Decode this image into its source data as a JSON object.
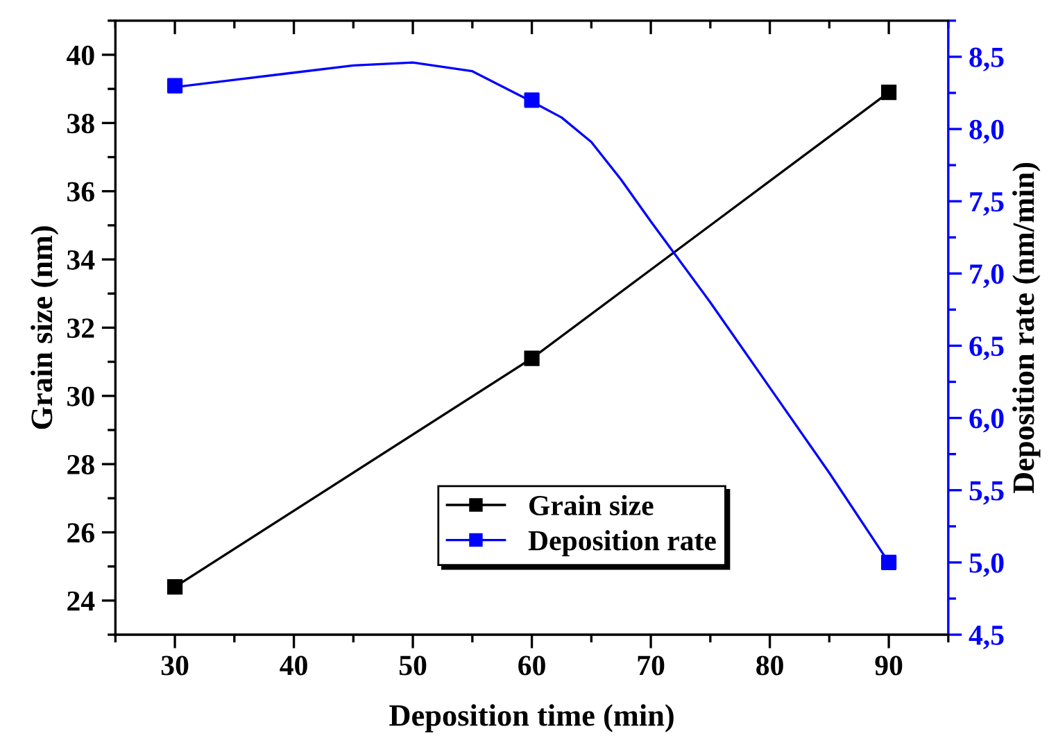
{
  "chart_data": {
    "type": "line",
    "xlabel": "Deposition time (min)",
    "ylabel": "Grain size (nm)",
    "y2label": "Deposition rate (nm/min)",
    "x": [
      30,
      60,
      90
    ],
    "series": [
      {
        "name": "Grain size",
        "color": "#000000",
        "values": [
          24.4,
          31.1,
          38.9
        ]
      },
      {
        "name": "Deposition rate",
        "color": "#0000ff",
        "values": [
          8.3,
          8.2,
          5.0
        ],
        "axis": "y2",
        "type": "scatter"
      },
      {
        "color": "#0000ff",
        "axis": "y2",
        "marker": "none",
        "x": [
          30,
          35,
          40,
          45,
          50,
          55,
          60,
          62.5,
          65,
          67.5,
          70,
          75,
          80,
          85,
          90
        ],
        "values": [
          8.29,
          8.34,
          8.39,
          8.44,
          8.46,
          8.4,
          8.19,
          8.08,
          7.91,
          7.65,
          7.36,
          6.8,
          6.21,
          5.62,
          5.0
        ]
      }
    ],
    "xlim": [
      25,
      95
    ],
    "xticks": [
      30,
      40,
      50,
      60,
      70,
      80,
      90
    ],
    "ylim": [
      23,
      41
    ],
    "yticks": [
      24,
      26,
      28,
      30,
      32,
      34,
      36,
      38,
      40
    ],
    "y2lim": [
      4.5,
      8.75
    ],
    "y2ticks": [
      {
        "value": 4.5,
        "label": "4,5"
      },
      {
        "value": 5.0,
        "label": "5,0"
      },
      {
        "value": 5.5,
        "label": "5,5"
      },
      {
        "value": 6.0,
        "label": "6,0"
      },
      {
        "value": 6.5,
        "label": "6,5"
      },
      {
        "value": 7.0,
        "label": "7,0"
      },
      {
        "value": 7.5,
        "label": "7,5"
      },
      {
        "value": 8.0,
        "label": "8,0"
      },
      {
        "value": 8.5,
        "label": "8,5"
      }
    ],
    "marker": "square",
    "line_style": "solid",
    "grid": false,
    "legend": "bottom"
  }
}
